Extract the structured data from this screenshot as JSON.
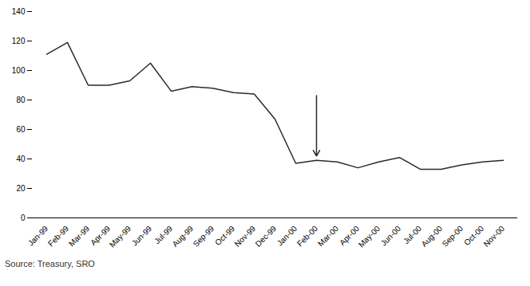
{
  "chart_data": {
    "type": "line",
    "categories": [
      "Jan-99",
      "Feb-99",
      "Mar-99",
      "Apr-99",
      "May-99",
      "Jun-99",
      "Jul-99",
      "Aug-99",
      "Sep-99",
      "Oct-99",
      "Nov-99",
      "Dec-99",
      "Jan-00",
      "Feb-00",
      "Mar-00",
      "Apr-00",
      "May-00",
      "Jun-00",
      "Jul-00",
      "Aug-00",
      "Sep-00",
      "Oct-00",
      "Nov-00"
    ],
    "values": [
      111,
      119,
      90,
      90,
      93,
      105,
      86,
      89,
      88,
      85,
      84,
      67,
      37,
      39,
      38,
      34,
      38,
      41,
      33,
      33,
      36,
      38,
      39
    ],
    "color": "#2b2b2b",
    "ylim": [
      0,
      140
    ],
    "yticks": [
      0,
      20,
      40,
      60,
      80,
      100,
      120,
      140
    ],
    "grid": false,
    "arrow": {
      "x": "Feb-00",
      "from": 83,
      "to": 42
    },
    "source": "Source: Treasury, SRO"
  }
}
